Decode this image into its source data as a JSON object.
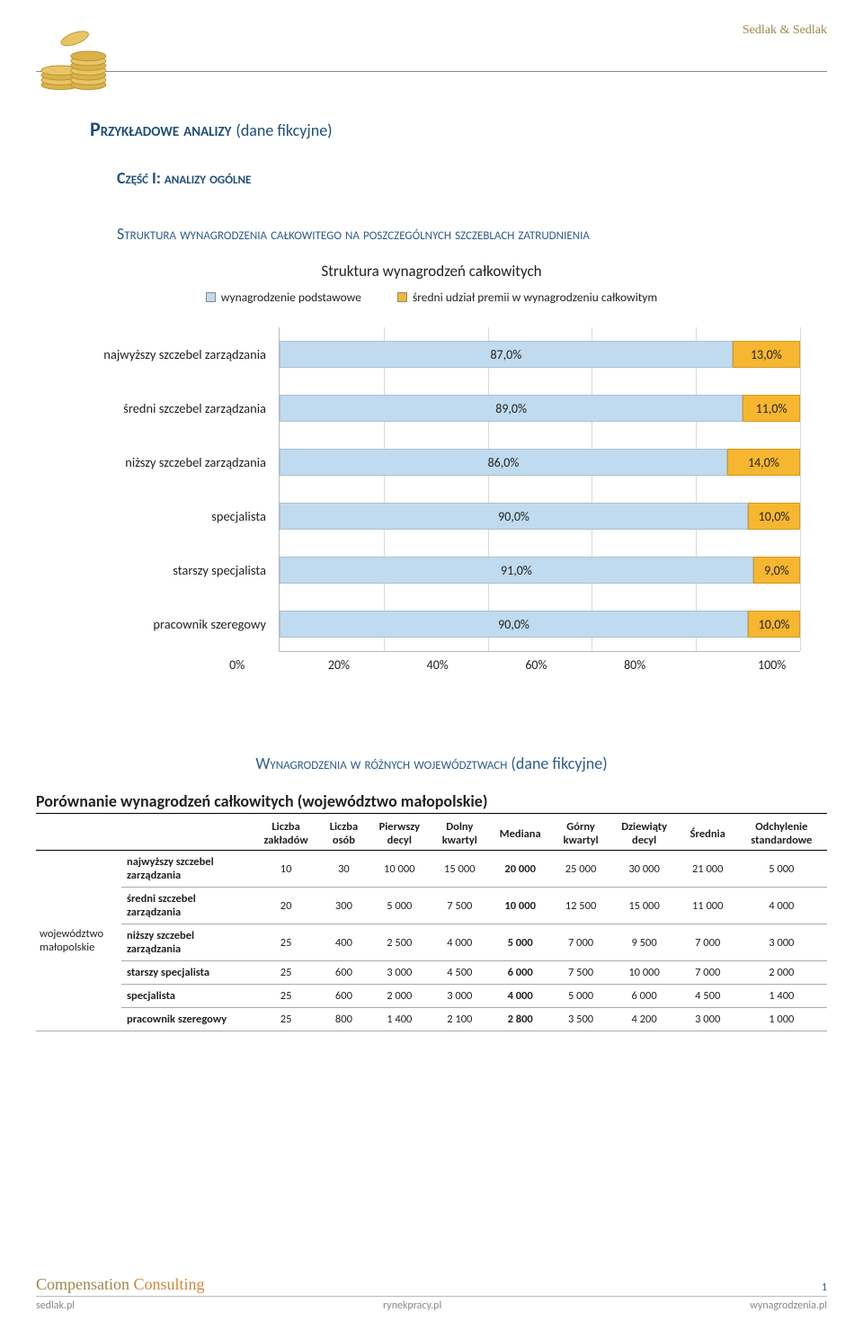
{
  "brand": "Sedlak & Sedlak",
  "title_main": "Przykładowe analizy",
  "title_suffix": "(dane fikcyjne)",
  "part_label": "Część I: analizy ogólne",
  "section1": "Struktura wynagrodzenia całkowitego na poszczególnych szczeblach zatrudnienia",
  "chart": {
    "title": "Struktura wynagrodzeń całkowitych",
    "legend": {
      "series_a": "wynagrodzenie podstawowe",
      "series_b": "średni udział premii w wynagrodzeniu całkowitym"
    },
    "colors": {
      "series_a": "#c0dbef",
      "series_b": "#f7b62f",
      "series_b_border": "#d49a1e",
      "grid": "#d9d9d9",
      "axis": "#bbbbbb"
    },
    "rows": [
      {
        "label": "najwyższy szczebel zarządzania",
        "a": 87.0,
        "b": 13.0,
        "a_txt": "87,0%",
        "b_txt": "13,0%"
      },
      {
        "label": "średni szczebel zarządzania",
        "a": 89.0,
        "b": 11.0,
        "a_txt": "89,0%",
        "b_txt": "11,0%"
      },
      {
        "label": "niższy szczebel zarządzania",
        "a": 86.0,
        "b": 14.0,
        "a_txt": "86,0%",
        "b_txt": "14,0%"
      },
      {
        "label": "specjalista",
        "a": 90.0,
        "b": 10.0,
        "a_txt": "90,0%",
        "b_txt": "10,0%"
      },
      {
        "label": "starszy specjalista",
        "a": 91.0,
        "b": 9.0,
        "a_txt": "91,0%",
        "b_txt": "9,0%"
      },
      {
        "label": "pracownik szeregowy",
        "a": 90.0,
        "b": 10.0,
        "a_txt": "90,0%",
        "b_txt": "10,0%"
      }
    ],
    "xticks": [
      "0%",
      "20%",
      "40%",
      "60%",
      "80%",
      "100%"
    ]
  },
  "section2": "Wynagrodzenia w różnych województwach",
  "section2_suffix": "(dane fikcyjne)",
  "table": {
    "title": "Porównanie wynagrodzeń całkowitych (województwo małopolskie)",
    "region": "województwo małopolskie",
    "columns": [
      "Liczba zakładów",
      "Liczba osób",
      "Pierwszy decyl",
      "Dolny kwartyl",
      "Mediana",
      "Górny kwartyl",
      "Dziewiąty decyl",
      "Średnia",
      "Odchylenie standardowe"
    ],
    "rows": [
      {
        "label": "najwyższy szczebel zarządzania",
        "c": [
          "10",
          "30",
          "10 000",
          "15 000",
          "20 000",
          "25 000",
          "30 000",
          "21 000",
          "5 000"
        ]
      },
      {
        "label": "średni szczebel zarządzania",
        "c": [
          "20",
          "300",
          "5 000",
          "7 500",
          "10 000",
          "12 500",
          "15 000",
          "11 000",
          "4 000"
        ]
      },
      {
        "label": "niższy szczebel zarządzania",
        "c": [
          "25",
          "400",
          "2 500",
          "4 000",
          "5 000",
          "7 000",
          "9 500",
          "7 000",
          "3 000"
        ]
      },
      {
        "label": "starszy specjalista",
        "c": [
          "25",
          "600",
          "3 000",
          "4 500",
          "6 000",
          "7 500",
          "10 000",
          "7 000",
          "2 000"
        ]
      },
      {
        "label": "specjalista",
        "c": [
          "25",
          "600",
          "2 000",
          "3 000",
          "4 000",
          "5 000",
          "6 000",
          "4 500",
          "1 400"
        ]
      },
      {
        "label": "pracownik szeregowy",
        "c": [
          "25",
          "800",
          "1 400",
          "2 100",
          "2 800",
          "3 500",
          "4 200",
          "3 000",
          "1 000"
        ]
      }
    ]
  },
  "footer": {
    "logo_a": "Compensation ",
    "logo_b": "Consulting",
    "page": "1",
    "links": [
      "sedlak.pl",
      "rynekpracy.pl",
      "wynagrodzenia.pl"
    ]
  }
}
